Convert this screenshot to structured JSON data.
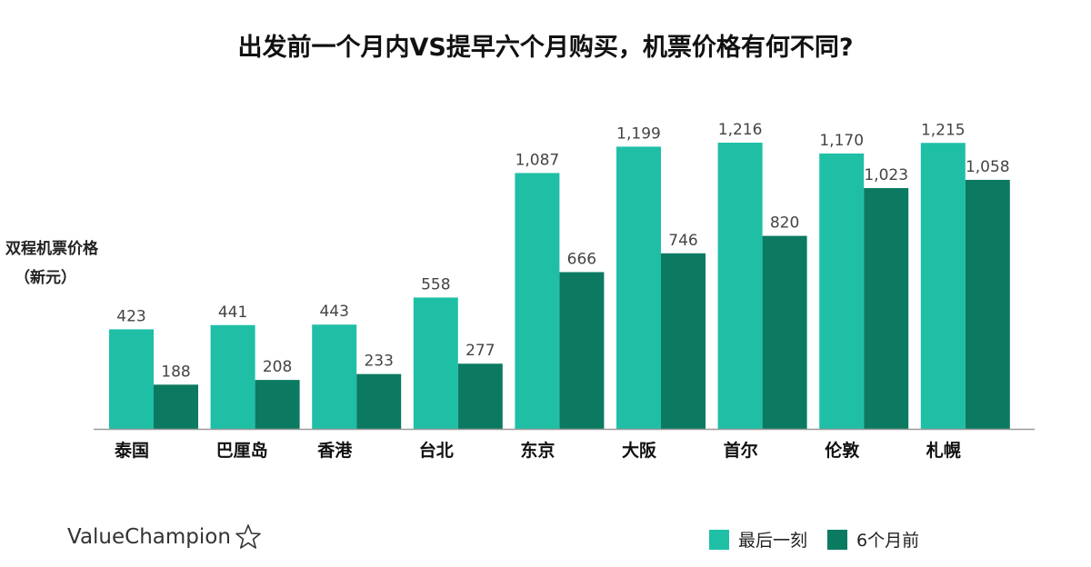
{
  "chart_data": {
    "type": "bar",
    "title": "出发前一个月内VS提早六个月购买，机票价格有何不同?",
    "ylabel_line1": "双程机票价格",
    "ylabel_line2": "（新元）",
    "categories": [
      "泰国",
      "巴厘岛",
      "香港",
      "台北",
      "东京",
      "大阪",
      "首尔",
      "伦敦",
      "札幌"
    ],
    "series": [
      {
        "name": "最后一刻",
        "color": "#1fbfa6",
        "values": [
          423,
          441,
          443,
          558,
          1087,
          1199,
          1216,
          1170,
          1215
        ],
        "labels": [
          "423",
          "441",
          "443",
          "558",
          "1,087",
          "1,199",
          "1,216",
          "1,170",
          "1,215"
        ]
      },
      {
        "name": "6个月前",
        "color": "#0b7a61",
        "values": [
          188,
          208,
          233,
          277,
          666,
          746,
          820,
          1023,
          1058
        ],
        "labels": [
          "188",
          "208",
          "233",
          "277",
          "666",
          "746",
          "820",
          "1,023",
          "1,058"
        ]
      }
    ],
    "ylim": [
      0,
      1300
    ],
    "grid": false,
    "legend_position": "bottom-right"
  },
  "brand": {
    "name": "ValueChampion",
    "icon": "star-outline-icon"
  }
}
